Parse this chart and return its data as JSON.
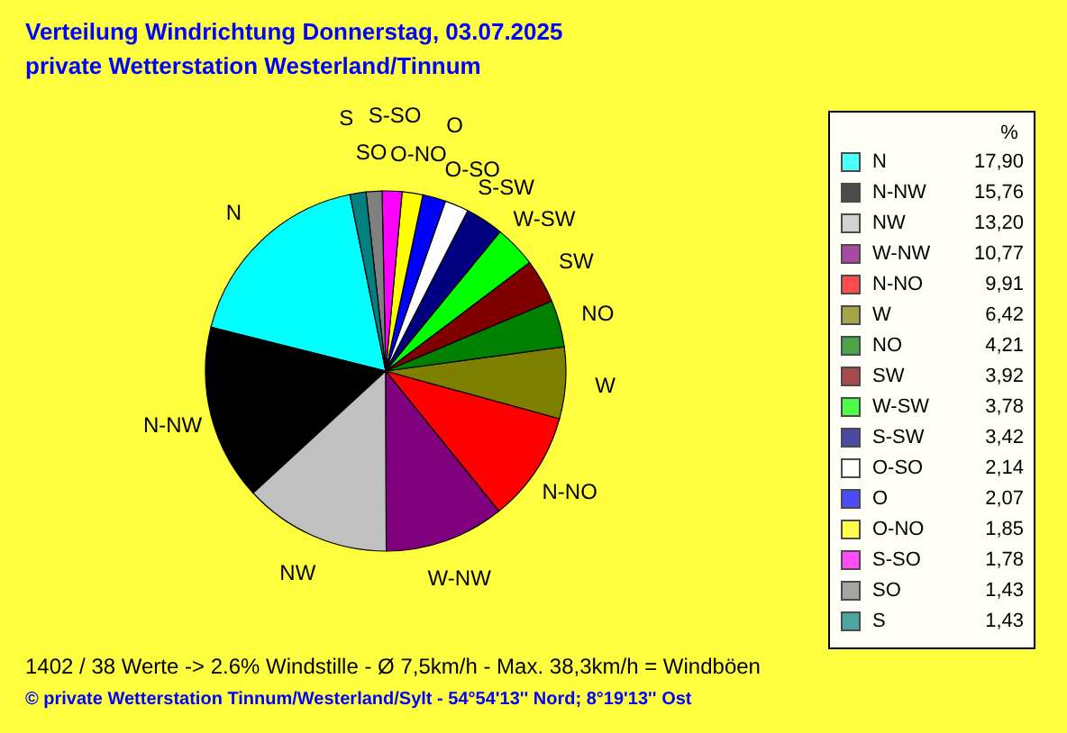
{
  "chart_data": {
    "type": "pie",
    "title": "Verteilung Windrichtung   Donnerstag, 03.07.2025",
    "subtitle": "private Wetterstation Westerland/Tinnum",
    "categories": [
      "N",
      "N-NW",
      "NW",
      "W-NW",
      "N-NO",
      "W",
      "NO",
      "SW",
      "W-SW",
      "S-SW",
      "O-SO",
      "O",
      "O-NO",
      "S-SO",
      "SO",
      "S"
    ],
    "values": [
      17.9,
      15.76,
      13.2,
      10.77,
      9.91,
      6.42,
      4.21,
      3.92,
      3.78,
      3.42,
      2.14,
      2.07,
      1.85,
      1.78,
      1.43,
      1.43
    ],
    "value_labels": [
      "17,90",
      "15,76",
      "13,20",
      "10,77",
      "9,91",
      "6,42",
      "4,21",
      "3,92",
      "3,78",
      "3,42",
      "2,14",
      "2,07",
      "1,85",
      "1,78",
      "1,43",
      "1,43"
    ],
    "colors": [
      "#00ffff",
      "#000000",
      "#c0c0c0",
      "#800080",
      "#ff0000",
      "#808000",
      "#008000",
      "#800000",
      "#00ff00",
      "#000080",
      "#ffffff",
      "#0000ff",
      "#ffff00",
      "#ff00ff",
      "#808080",
      "#008080"
    ],
    "legend_title": "%",
    "legend": "right",
    "annotations": [
      "1402 / 38 Werte  -> 2.6% Windstille   -   Ø 7,5km/h  -  Max. 38,3km/h = Windböen",
      "© private Wetterstation Tinnum/Westerland/Sylt  -  54°54'13'' Nord; 8°19'13'' Ost"
    ]
  }
}
